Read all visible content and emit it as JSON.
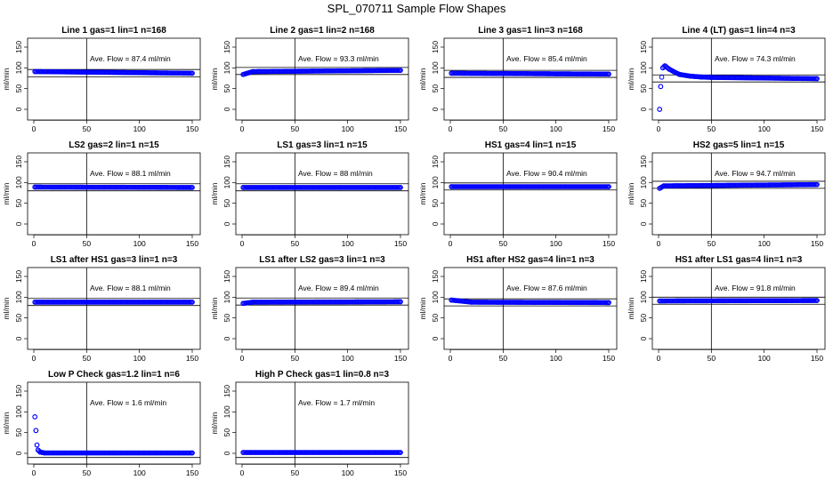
{
  "figure_title": "SPL_070711  Sample Flow Shapes",
  "chart_data": [
    {
      "type": "scatter",
      "title": "Line 1 gas=1 lin=1 n=168",
      "ylabel": "ml/min",
      "annotation": "Ave. Flow =  87.4  ml/min",
      "xlim": [
        0,
        150
      ],
      "ylim": [
        0,
        150
      ],
      "x_ticks": [
        0,
        50,
        100,
        150
      ],
      "y_ticks": [
        0,
        50,
        100,
        150
      ],
      "vline_x": 50,
      "hlines": [
        78,
        96
      ],
      "series": [
        {
          "x": [
            1,
            150
          ],
          "y": [
            91,
            87
          ]
        }
      ]
    },
    {
      "type": "scatter",
      "title": "Line 2 gas=1 lin=2 n=168",
      "ylabel": "ml/min",
      "annotation": "Ave. Flow =  93.3  ml/min",
      "xlim": [
        0,
        150
      ],
      "ylim": [
        0,
        150
      ],
      "x_ticks": [
        0,
        50,
        100,
        150
      ],
      "y_ticks": [
        0,
        50,
        100,
        150
      ],
      "vline_x": 50,
      "hlines": [
        84,
        101
      ],
      "series": [
        {
          "x": [
            1,
            10,
            150
          ],
          "y": [
            84,
            91,
            94
          ]
        }
      ]
    },
    {
      "type": "scatter",
      "title": "Line 3 gas=1 lin=3 n=168",
      "ylabel": "ml/min",
      "annotation": "Ave. Flow =  85.4  ml/min",
      "xlim": [
        0,
        150
      ],
      "ylim": [
        0,
        150
      ],
      "x_ticks": [
        0,
        50,
        100,
        150
      ],
      "y_ticks": [
        0,
        50,
        100,
        150
      ],
      "vline_x": 50,
      "hlines": [
        77,
        94
      ],
      "series": [
        {
          "x": [
            1,
            150
          ],
          "y": [
            87,
            85
          ]
        }
      ]
    },
    {
      "type": "scatter",
      "title": "Line 4 (LT) gas=1 lin=4 n=3",
      "ylabel": "ml/min",
      "annotation": "Ave. Flow =  74.3  ml/min",
      "xlim": [
        0,
        150
      ],
      "ylim": [
        0,
        150
      ],
      "x_ticks": [
        0,
        50,
        100,
        150
      ],
      "y_ticks": [
        0,
        50,
        100,
        150
      ],
      "vline_x": 50,
      "hlines": [
        66,
        83
      ],
      "series": [
        {
          "x": [
            1,
            2,
            4,
            6,
            10,
            15,
            20,
            30,
            40,
            50,
            150
          ],
          "y": [
            0,
            55,
            100,
            105,
            97,
            90,
            84,
            80,
            78,
            77,
            74
          ]
        }
      ]
    },
    {
      "type": "scatter",
      "title": "LS2 gas=2 lin=1 n=15",
      "ylabel": "ml/min",
      "annotation": "Ave. Flow =  88.1  ml/min",
      "xlim": [
        0,
        150
      ],
      "ylim": [
        0,
        150
      ],
      "x_ticks": [
        0,
        50,
        100,
        150
      ],
      "y_ticks": [
        0,
        50,
        100,
        150
      ],
      "vline_x": 50,
      "hlines": [
        80,
        97
      ],
      "series": [
        {
          "x": [
            1,
            150
          ],
          "y": [
            89,
            88
          ]
        }
      ]
    },
    {
      "type": "scatter",
      "title": "LS1 gas=3 lin=1 n=15",
      "ylabel": "ml/min",
      "annotation": "Ave. Flow =  88  ml/min",
      "xlim": [
        0,
        150
      ],
      "ylim": [
        0,
        150
      ],
      "x_ticks": [
        0,
        50,
        100,
        150
      ],
      "y_ticks": [
        0,
        50,
        100,
        150
      ],
      "vline_x": 50,
      "hlines": [
        80,
        97
      ],
      "series": [
        {
          "x": [
            1,
            150
          ],
          "y": [
            88,
            88
          ]
        }
      ]
    },
    {
      "type": "scatter",
      "title": "HS1 gas=4 lin=1 n=15",
      "ylabel": "ml/min",
      "annotation": "Ave. Flow =  90.4  ml/min",
      "xlim": [
        0,
        150
      ],
      "ylim": [
        0,
        150
      ],
      "x_ticks": [
        0,
        50,
        100,
        150
      ],
      "y_ticks": [
        0,
        50,
        100,
        150
      ],
      "vline_x": 50,
      "hlines": [
        82,
        99
      ],
      "series": [
        {
          "x": [
            1,
            150
          ],
          "y": [
            90,
            90
          ]
        }
      ]
    },
    {
      "type": "scatter",
      "title": "HS2 gas=5 lin=1 n=15",
      "ylabel": "ml/min",
      "annotation": "Ave. Flow =  94.7  ml/min",
      "xlim": [
        0,
        150
      ],
      "ylim": [
        0,
        150
      ],
      "x_ticks": [
        0,
        50,
        100,
        150
      ],
      "y_ticks": [
        0,
        50,
        100,
        150
      ],
      "vline_x": 50,
      "hlines": [
        86,
        103
      ],
      "series": [
        {
          "x": [
            1,
            5,
            150
          ],
          "y": [
            86,
            92,
            95
          ]
        }
      ]
    },
    {
      "type": "scatter",
      "title": "LS1 after HS1 gas=3 lin=1 n=3",
      "ylabel": "ml/min",
      "annotation": "Ave. Flow =  88.1  ml/min",
      "xlim": [
        0,
        150
      ],
      "ylim": [
        0,
        150
      ],
      "x_ticks": [
        0,
        50,
        100,
        150
      ],
      "y_ticks": [
        0,
        50,
        100,
        150
      ],
      "vline_x": 50,
      "hlines": [
        80,
        97
      ],
      "series": [
        {
          "x": [
            1,
            150
          ],
          "y": [
            88,
            88
          ]
        }
      ]
    },
    {
      "type": "scatter",
      "title": "LS1 after LS2 gas=3 lin=1 n=3",
      "ylabel": "ml/min",
      "annotation": "Ave. Flow =  89.4  ml/min",
      "xlim": [
        0,
        150
      ],
      "ylim": [
        0,
        150
      ],
      "x_ticks": [
        0,
        50,
        100,
        150
      ],
      "y_ticks": [
        0,
        50,
        100,
        150
      ],
      "vline_x": 50,
      "hlines": [
        81,
        98
      ],
      "series": [
        {
          "x": [
            1,
            10,
            150
          ],
          "y": [
            85,
            88,
            89
          ]
        }
      ]
    },
    {
      "type": "scatter",
      "title": "HS1 after HS2 gas=4 lin=1 n=3",
      "ylabel": "ml/min",
      "annotation": "Ave. Flow =  87.6  ml/min",
      "xlim": [
        0,
        150
      ],
      "ylim": [
        0,
        150
      ],
      "x_ticks": [
        0,
        50,
        100,
        150
      ],
      "y_ticks": [
        0,
        50,
        100,
        150
      ],
      "vline_x": 50,
      "hlines": [
        79,
        96
      ],
      "series": [
        {
          "x": [
            1,
            20,
            150
          ],
          "y": [
            93,
            88,
            87
          ]
        }
      ]
    },
    {
      "type": "scatter",
      "title": "HS1 after LS1 gas=4 lin=1 n=3",
      "ylabel": "ml/min",
      "annotation": "Ave. Flow =  91.8  ml/min",
      "xlim": [
        0,
        150
      ],
      "ylim": [
        0,
        150
      ],
      "x_ticks": [
        0,
        50,
        100,
        150
      ],
      "y_ticks": [
        0,
        50,
        100,
        150
      ],
      "vline_x": 50,
      "hlines": [
        83,
        100
      ],
      "series": [
        {
          "x": [
            1,
            150
          ],
          "y": [
            91,
            92
          ]
        }
      ]
    },
    {
      "type": "scatter",
      "title": "Low P Check gas=1.2 lin=1 n=6",
      "ylabel": "ml/min",
      "annotation": "Ave. Flow =  1.6  ml/min",
      "xlim": [
        0,
        150
      ],
      "ylim": [
        0,
        150
      ],
      "x_ticks": [
        0,
        50,
        100,
        150
      ],
      "y_ticks": [
        0,
        50,
        100,
        150
      ],
      "vline_x": 50,
      "hlines": [
        -10
      ],
      "series": [
        {
          "x": [
            1,
            2,
            3,
            4,
            6,
            8,
            10,
            150
          ],
          "y": [
            88,
            55,
            20,
            8,
            3,
            2,
            1,
            1
          ]
        }
      ]
    },
    {
      "type": "scatter",
      "title": "High P Check gas=1 lin=0.8 n=3",
      "ylabel": "ml/min",
      "annotation": "Ave. Flow =  1.7  ml/min",
      "xlim": [
        0,
        150
      ],
      "ylim": [
        0,
        150
      ],
      "x_ticks": [
        0,
        50,
        100,
        150
      ],
      "y_ticks": [
        0,
        50,
        100,
        150
      ],
      "vline_x": 50,
      "hlines": [
        -10
      ],
      "series": [
        {
          "x": [
            1,
            150
          ],
          "y": [
            2,
            2
          ]
        }
      ]
    }
  ],
  "colors": {
    "points": "#0000ff",
    "axes": "#000000",
    "background": "#ffffff"
  }
}
